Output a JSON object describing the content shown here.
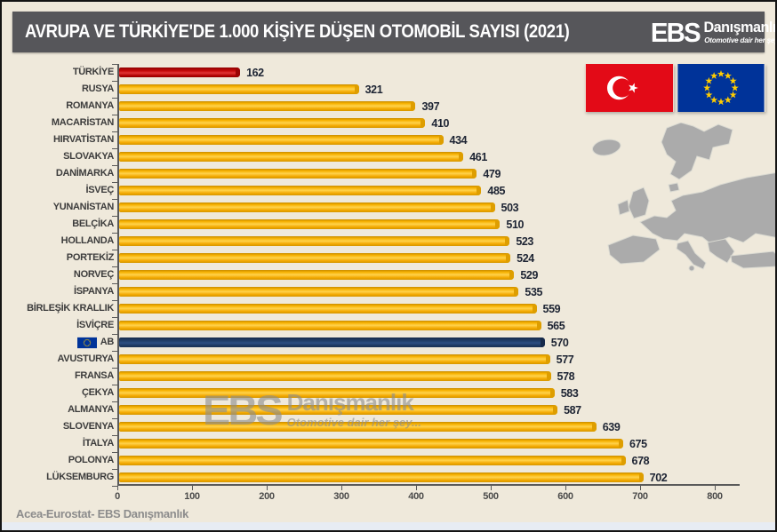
{
  "header": {
    "title": "AVRUPA VE TÜRKİYE'DE 1.000 KİŞİYE DÜŞEN OTOMOBİL SAYISI  (2021)",
    "logo": {
      "ebs": "EBS",
      "name": "Danışmanlık",
      "tagline": "Otomotive dair her şey..."
    }
  },
  "chart_data": {
    "type": "bar",
    "orientation": "horizontal",
    "title": "AVRUPA VE TÜRKİYE'DE 1.000 KİŞİYE DÜŞEN OTOMOBİL SAYISI (2021)",
    "categories": [
      "TÜRKİYE",
      "RUSYA",
      "ROMANYA",
      "MACARİSTAN",
      "HIRVATİSTAN",
      "SLOVAKYA",
      "DANİMARKA",
      "İSVEÇ",
      "YUNANİSTAN",
      "BELÇİKA",
      "HOLLANDA",
      "PORTEKİZ",
      "NORVEÇ",
      "İSPANYA",
      "BİRLEŞİK KRALLIK",
      "İSVİÇRE",
      "AB",
      "AVUSTURYA",
      "FRANSA",
      "ÇEKYA",
      "ALMANYA",
      "SLOVENYA",
      "İTALYA",
      "POLONYA",
      "LÜKSEMBURG"
    ],
    "values": [
      162,
      321,
      397,
      410,
      434,
      461,
      479,
      485,
      503,
      510,
      523,
      524,
      529,
      535,
      559,
      565,
      570,
      577,
      578,
      583,
      587,
      639,
      675,
      678,
      702
    ],
    "bar_colors": {
      "TÜRKİYE": "red",
      "AB": "navy"
    },
    "flag_icon_category": "AB",
    "xlim": [
      0,
      800
    ],
    "xticks": [
      0,
      100,
      200,
      300,
      400,
      500,
      600,
      700,
      800
    ],
    "xlabel": "",
    "ylabel": "",
    "grid": false,
    "legend": "none"
  },
  "source": "Acea-Eurostat- EBS Danışmanlık",
  "watermark": {
    "ebs": "EBS",
    "name": "Danışmanlık",
    "tagline": "Otomotive dair her şey..."
  },
  "flags": {
    "left": "turkey-flag",
    "right": "eu-flag"
  },
  "colors": {
    "background": "#EFE9DB",
    "header_bg": "#56565A",
    "bar_gold": "#F7B100",
    "bar_red": "#C80A0A",
    "bar_navy": "#1F3A63",
    "turkey_flag_red": "#E30A17",
    "eu_flag_blue": "#003399",
    "eu_star_yellow": "#FFCC00",
    "map_gray": "#ABABAB"
  }
}
